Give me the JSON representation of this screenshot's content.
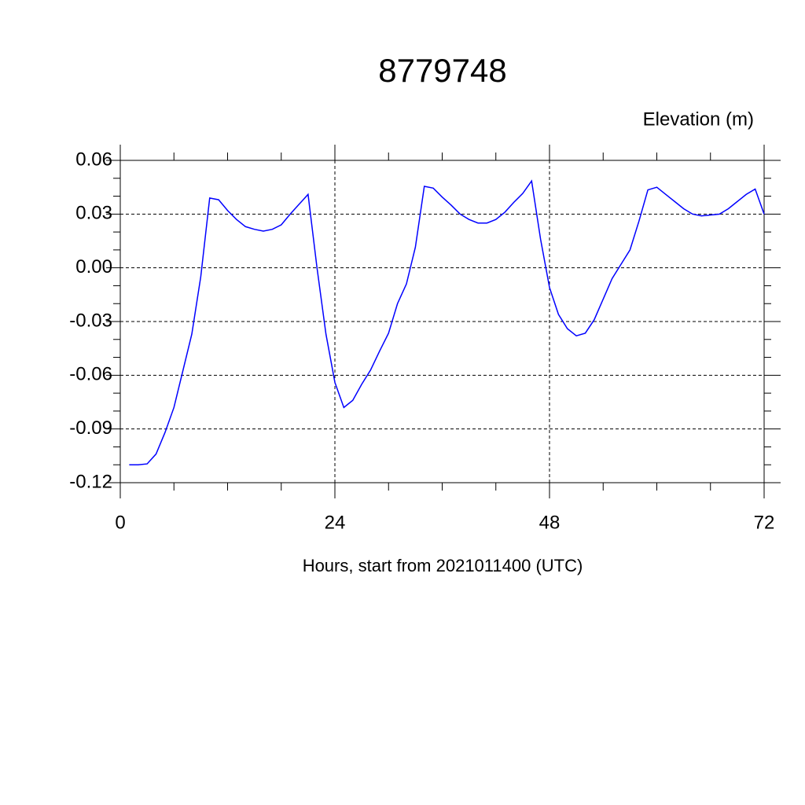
{
  "chart_data": {
    "type": "line",
    "title": "8779748",
    "y_label": "Elevation (m)",
    "x_label": "Hours, start from 2021011400 (UTC)",
    "xlim": [
      0,
      72
    ],
    "xticks": [
      0,
      24,
      48,
      72
    ],
    "ylim": [
      -0.12,
      0.06
    ],
    "yticks": [
      -0.12,
      -0.09,
      -0.06,
      -0.03,
      {
        "value": 0,
        "label": "0.00"
      },
      0.03,
      0.06
    ],
    "grid": true,
    "x": [
      1,
      2,
      3,
      4,
      5,
      6,
      7,
      8,
      9,
      10,
      11,
      12,
      13,
      14,
      15,
      16,
      17,
      18,
      19,
      20,
      21,
      22,
      23,
      24,
      25,
      26,
      27,
      28,
      29,
      30,
      31,
      32,
      33,
      34,
      35,
      36,
      37,
      38,
      39,
      40,
      41,
      42,
      43,
      44,
      45,
      46,
      47,
      48,
      49,
      50,
      51,
      52,
      53,
      54,
      55,
      56,
      57,
      58,
      59,
      60,
      61,
      62,
      63,
      64,
      65,
      66,
      67,
      68,
      69,
      70,
      71,
      72
    ],
    "series": [
      {
        "color": "#0000ff",
        "values": [
          -0.11,
          -0.11,
          -0.1095,
          -0.104,
          -0.092,
          -0.078,
          -0.0575,
          -0.037,
          -0.005,
          0.039,
          0.038,
          0.032,
          0.027,
          0.023,
          0.0215,
          0.0205,
          0.0215,
          0.024,
          0.03,
          0.0355,
          0.041,
          0.0,
          -0.037,
          -0.064,
          -0.078,
          -0.074,
          -0.065,
          -0.057,
          -0.0465,
          -0.0365,
          -0.02,
          -0.009,
          0.0115,
          0.0455,
          0.0445,
          0.0395,
          0.035,
          0.03,
          0.027,
          0.025,
          0.025,
          0.027,
          0.031,
          0.0365,
          0.0415,
          0.0485,
          0.016,
          -0.011,
          -0.026,
          -0.034,
          -0.038,
          -0.0365,
          -0.029,
          -0.0175,
          -0.006,
          0.002,
          0.01,
          0.026,
          0.0435,
          0.045,
          0.041,
          0.037,
          0.033,
          0.03,
          0.029,
          0.0295,
          0.03,
          0.033,
          0.037,
          0.041,
          0.044,
          0.03
        ]
      }
    ]
  }
}
